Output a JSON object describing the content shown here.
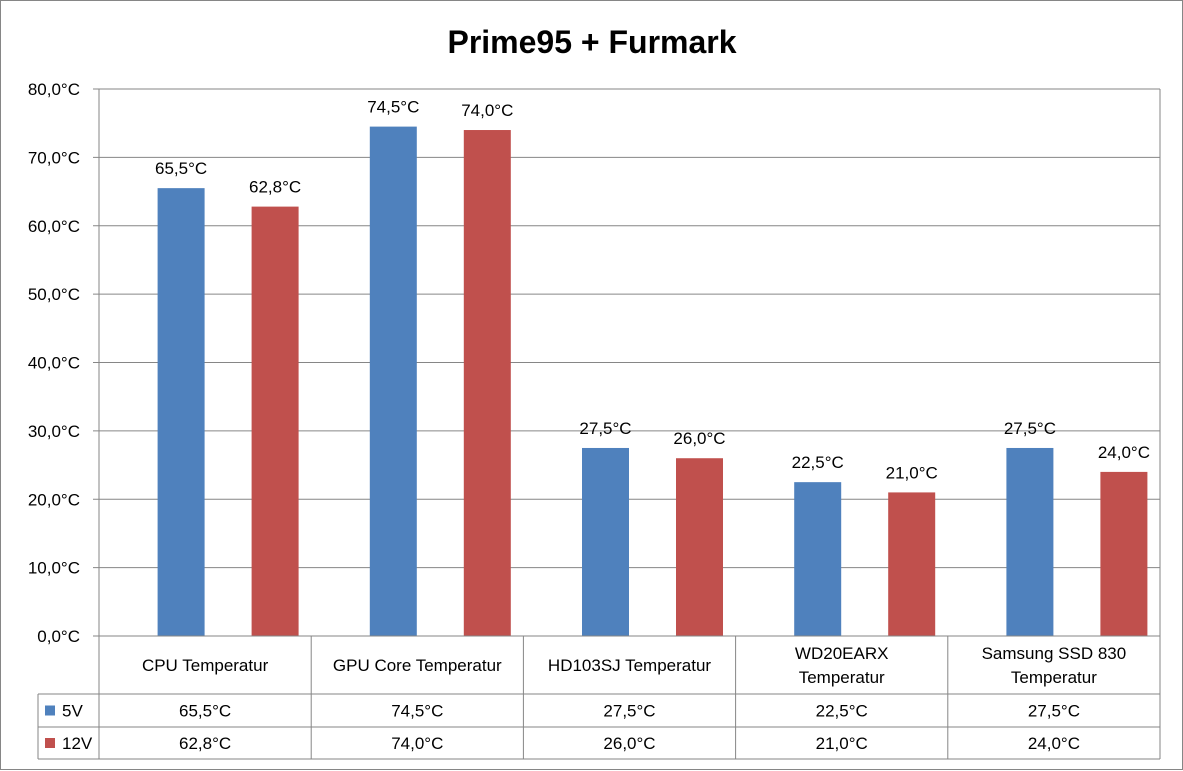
{
  "chart_data": {
    "type": "bar",
    "title": "Prime95 + Furmark",
    "categories": [
      [
        "CPU Temperatur"
      ],
      [
        "GPU Core Temperatur"
      ],
      [
        "HD103SJ Temperatur"
      ],
      [
        "WD20EARX",
        "Temperatur"
      ],
      [
        "Samsung SSD 830",
        "Temperatur"
      ]
    ],
    "series": [
      {
        "name": "5V",
        "color": "#4F81BD",
        "values": [
          65.5,
          74.5,
          27.5,
          22.5,
          27.5
        ],
        "labels": [
          "65,5°C",
          "74,5°C",
          "27,5°C",
          "22,5°C",
          "27,5°C"
        ]
      },
      {
        "name": "12V",
        "color": "#C0504D",
        "values": [
          62.8,
          74.0,
          26.0,
          21.0,
          24.0
        ],
        "labels": [
          "62,8°C",
          "74,0°C",
          "26,0°C",
          "21,0°C",
          "24,0°C"
        ]
      }
    ],
    "yticks": [
      "0,0°C",
      "10,0°C",
      "20,0°C",
      "30,0°C",
      "40,0°C",
      "50,0°C",
      "60,0°C",
      "70,0°C",
      "80,0°C"
    ],
    "ylim": [
      0,
      80
    ],
    "grid": true,
    "data_table": true,
    "legend": "data-table-keys"
  }
}
